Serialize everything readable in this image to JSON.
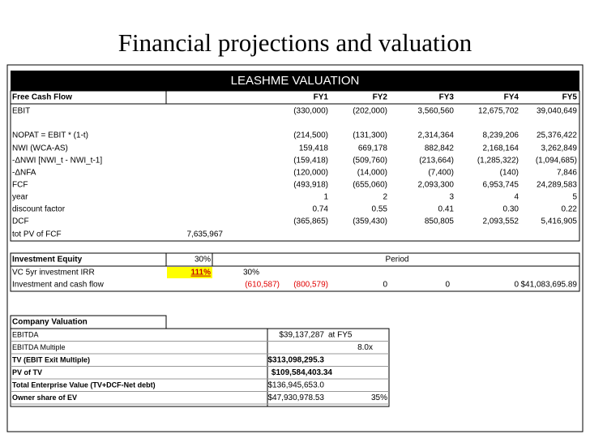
{
  "title": "Financial projections and valuation",
  "sheet_title": "LEASHME VALUATION",
  "fcf": {
    "header": [
      "Free Cash Flow",
      "FY1",
      "FY2",
      "FY3",
      "FY4",
      "FY5"
    ],
    "rows": [
      [
        "EBIT",
        "(330,000)",
        "(202,000)",
        "3,560,560",
        "12,675,702",
        "39,040,649"
      ],
      [
        "NOPAT = EBIT * (1-t)",
        "(214,500)",
        "(131,300)",
        "2,314,364",
        "8,239,206",
        "25,376,422"
      ],
      [
        "NWI (WCA-AS)",
        "159,418",
        "669,178",
        "882,842",
        "2,168,164",
        "3,262,849"
      ],
      [
        "-ΔNWI [NWI_t - NWI_t-1]",
        "(159,418)",
        "(509,760)",
        "(213,664)",
        "(1,285,322)",
        "(1,094,685)"
      ],
      [
        "-ΔNFA",
        "(120,000)",
        "(14,000)",
        "(7,400)",
        "(140)",
        "7,846"
      ],
      [
        "FCF",
        "(493,918)",
        "(655,060)",
        "2,093,300",
        "6,953,745",
        "24,289,583"
      ],
      [
        "year",
        "1",
        "2",
        "3",
        "4",
        "5"
      ],
      [
        "discount factor",
        "0.74",
        "0.55",
        "0.41",
        "0.30",
        "0.22"
      ],
      [
        "DCF",
        "(365,865)",
        "(359,430)",
        "850,805",
        "2,093,552",
        "5,416,905"
      ]
    ],
    "tot_pv": [
      "tot PV of FCF",
      "7,635,967"
    ]
  },
  "investment": {
    "header": [
      "Investment Equity",
      "30%",
      "Period"
    ],
    "irr": [
      "VC 5yr investment IRR",
      "111%",
      "30%"
    ],
    "cash_flow": [
      "Investment and cash flow",
      "(610,587)",
      "(800,579)",
      "0",
      "0",
      "0",
      "$41,083,695.89"
    ]
  },
  "valuation": {
    "header": "Company Valuation",
    "rows": [
      [
        "EBITDA",
        "$39,137,287",
        "at FY5"
      ],
      [
        "EBITDA Multiple",
        "8.0x"
      ],
      [
        "TV (EBIT Exit Multiple)",
        "$313,098,295.3"
      ],
      [
        "PV of TV",
        "$109,584,403.34"
      ],
      [
        "Total Enterprise Value (TV+DCF-Net debt)",
        "$136,945,653.0"
      ],
      [
        "Owner share of EV",
        "$47,930,978.53",
        "35%"
      ]
    ]
  }
}
